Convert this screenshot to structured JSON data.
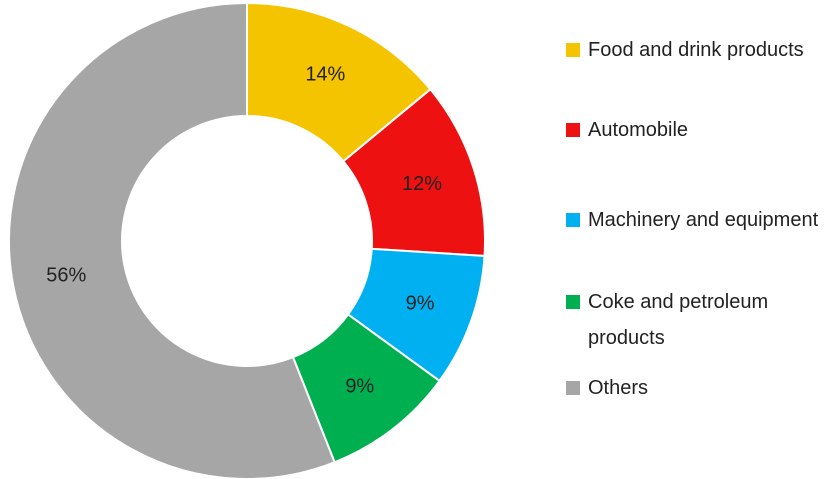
{
  "chart_data": {
    "type": "pie",
    "donut": true,
    "legend_position": "right",
    "slices": [
      {
        "name": "Food and drink products",
        "value": 14,
        "label": "14%",
        "color": "#F5C400"
      },
      {
        "name": "Automobile",
        "value": 12,
        "label": "12%",
        "color": "#EE1111"
      },
      {
        "name": "Machinery and equipment",
        "value": 9,
        "label": "9%",
        "color": "#00B0F0"
      },
      {
        "name": "Coke and petroleum products",
        "value": 9,
        "label": "9%",
        "color": "#00B050"
      },
      {
        "name": "Others",
        "value": 56,
        "label": "56%",
        "color": "#A6A6A6"
      }
    ]
  }
}
